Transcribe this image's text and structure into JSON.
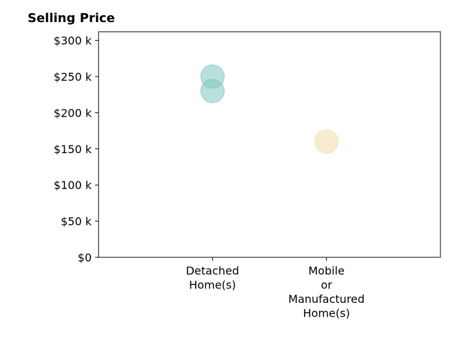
{
  "title": "Selling Price",
  "chart_data": {
    "type": "scatter",
    "title": "Selling Price",
    "xlabel": "",
    "ylabel": "",
    "categories": [
      "Detached\nHome(s)",
      "Mobile\nor\nManufactured\nHome(s)"
    ],
    "ylim": [
      0,
      312000
    ],
    "yticks": [
      {
        "value": 0,
        "label": "$0"
      },
      {
        "value": 50000,
        "label": "$50 k"
      },
      {
        "value": 100000,
        "label": "$100 k"
      },
      {
        "value": 150000,
        "label": "$150 k"
      },
      {
        "value": 200000,
        "label": "$200 k"
      },
      {
        "value": 250000,
        "label": "$250 k"
      },
      {
        "value": 300000,
        "label": "$300 k"
      }
    ],
    "points": [
      {
        "category": "Detached\nHome(s)",
        "y": 250000,
        "color": "#7fc8bd"
      },
      {
        "category": "Detached\nHome(s)",
        "y": 230000,
        "color": "#7fc8bd"
      },
      {
        "category": "Mobile\nor\nManufactured\nHome(s)",
        "y": 160000,
        "color": "#f3dca6"
      }
    ],
    "grid": false,
    "legend": "none"
  }
}
